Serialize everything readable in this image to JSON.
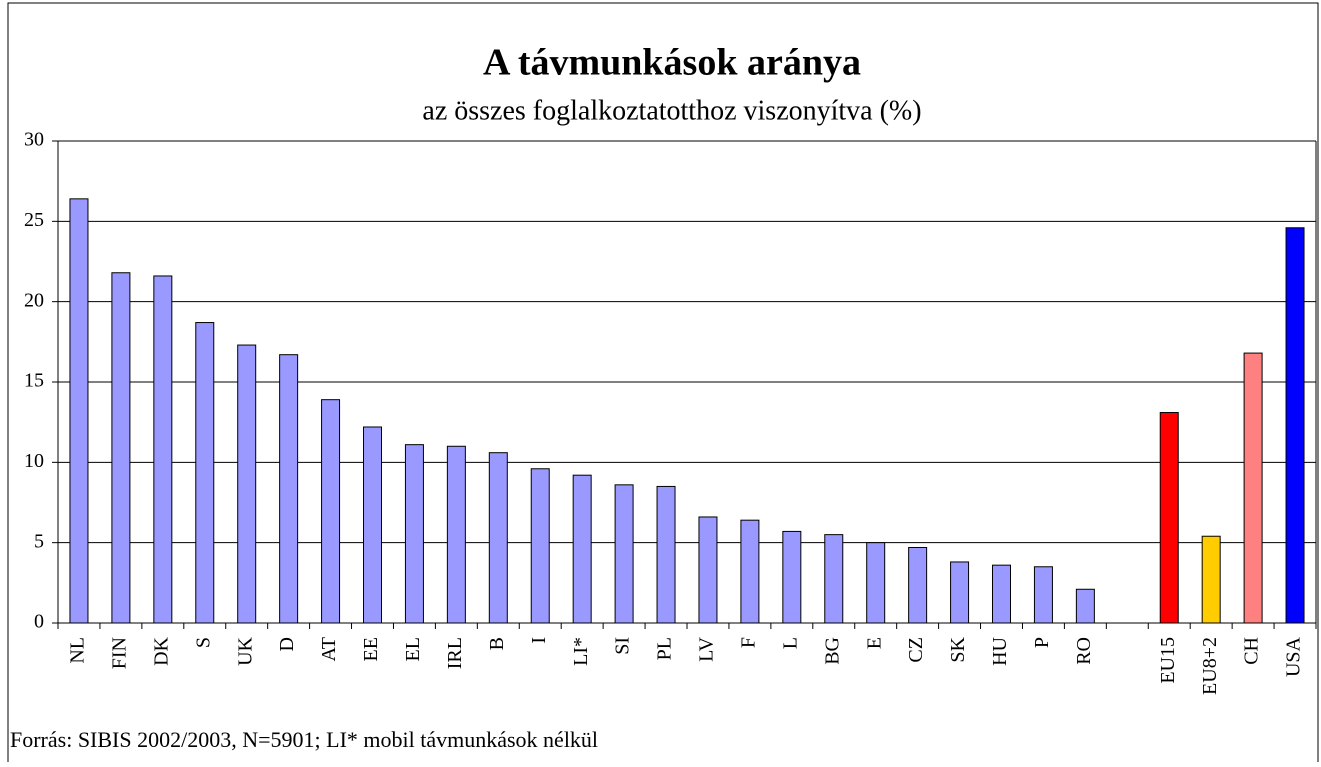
{
  "chart_data": {
    "type": "bar",
    "title": "A távmunkások aránya",
    "subtitle": "az összes foglalkoztatotthoz viszonyítva (%)",
    "source": "Forrás: SIBIS 2002/2003, N=5901; LI* mobil távmunkások nélkül",
    "categories": [
      "NL",
      "FIN",
      "DK",
      "S",
      "UK",
      "D",
      "AT",
      "EE",
      "EL",
      "IRL",
      "B",
      "I",
      "LI*",
      "SI",
      "PL",
      "LV",
      "F",
      "L",
      "BG",
      "E",
      "CZ",
      "SK",
      "HU",
      "P",
      "RO",
      null,
      "EU15",
      "EU8+2",
      "CH",
      "USA"
    ],
    "values": [
      26.4,
      21.8,
      21.6,
      18.7,
      17.3,
      16.7,
      13.9,
      12.2,
      11.1,
      11.0,
      10.6,
      9.6,
      9.2,
      8.6,
      8.5,
      6.6,
      6.4,
      5.7,
      5.5,
      5.0,
      4.7,
      3.8,
      3.6,
      3.5,
      2.1,
      null,
      13.1,
      5.4,
      16.8,
      24.6
    ],
    "colors": [
      "#9999ff",
      "#9999ff",
      "#9999ff",
      "#9999ff",
      "#9999ff",
      "#9999ff",
      "#9999ff",
      "#9999ff",
      "#9999ff",
      "#9999ff",
      "#9999ff",
      "#9999ff",
      "#9999ff",
      "#9999ff",
      "#9999ff",
      "#9999ff",
      "#9999ff",
      "#9999ff",
      "#9999ff",
      "#9999ff",
      "#9999ff",
      "#9999ff",
      "#9999ff",
      "#9999ff",
      "#9999ff",
      null,
      "#ff0000",
      "#ffcc00",
      "#ff8080",
      "#0000ff"
    ],
    "ylim": [
      0,
      30
    ],
    "yticks": [
      0,
      5,
      10,
      15,
      20,
      25,
      30
    ],
    "grid": true
  }
}
